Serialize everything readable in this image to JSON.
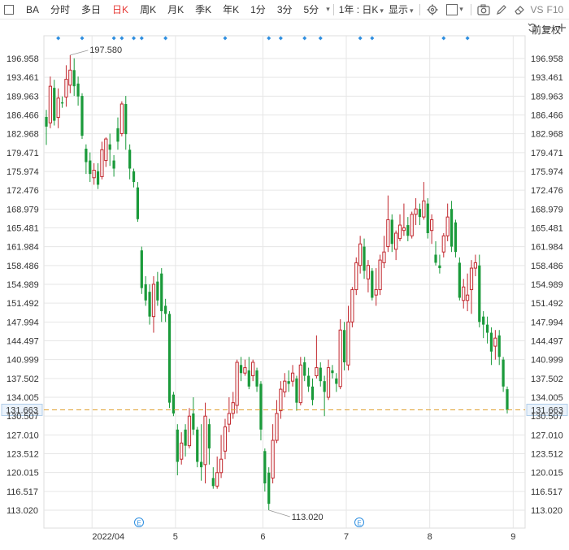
{
  "toolbar": {
    "symbol": "BA",
    "periods": [
      "分时",
      "多日",
      "日K",
      "周K",
      "月K",
      "季K",
      "年K",
      "1分",
      "3分",
      "5分"
    ],
    "active_period": "日K",
    "range_select": "1年 : 日K",
    "display_select": "显示",
    "vs_label": "VS",
    "f10_label": "F10"
  },
  "adjust_label": "前复权",
  "colors": {
    "up": "#c1272d",
    "down": "#1a9a3a",
    "marker": "#2d8ee0",
    "grid": "#e6e6e6"
  },
  "annotations": {
    "high": "197.580",
    "low": "113.020"
  },
  "current_price": "131.663",
  "x_labels": [
    "2022/04",
    "5",
    "6",
    "7",
    "8",
    "9"
  ],
  "chart_data": {
    "type": "candlestick",
    "y_ticks": [
      196.958,
      193.461,
      189.963,
      186.466,
      182.968,
      179.471,
      175.974,
      172.476,
      168.979,
      165.481,
      161.984,
      158.486,
      154.989,
      151.492,
      147.994,
      144.497,
      140.999,
      137.502,
      134.005,
      130.507,
      127.01,
      123.512,
      120.015,
      116.517,
      113.02
    ],
    "ylim": [
      110.5,
      199.5
    ],
    "current_price": 131.663,
    "high": 197.58,
    "low": 113.02,
    "x_labels": [
      "2022/04",
      "5",
      "6",
      "7",
      "8",
      "9"
    ],
    "candles": [
      {
        "o": 186.1,
        "c": 184.3,
        "h": 187.4,
        "l": 180.9
      },
      {
        "o": 185.0,
        "c": 191.8,
        "h": 193.6,
        "l": 184.0
      },
      {
        "o": 191.5,
        "c": 185.4,
        "h": 193.0,
        "l": 184.5
      },
      {
        "o": 186.0,
        "c": 189.6,
        "h": 191.4,
        "l": 184.0
      },
      {
        "o": 188.8,
        "c": 188.6,
        "h": 189.9,
        "l": 187.8
      },
      {
        "o": 189.8,
        "c": 193.1,
        "h": 195.7,
        "l": 188.0
      },
      {
        "o": 192.0,
        "c": 194.8,
        "h": 197.58,
        "l": 190.5
      },
      {
        "o": 194.8,
        "c": 191.8,
        "h": 197.0,
        "l": 190.0
      },
      {
        "o": 192.3,
        "c": 189.9,
        "h": 193.6,
        "l": 188.2
      },
      {
        "o": 190.0,
        "c": 182.6,
        "h": 190.5,
        "l": 182.0
      },
      {
        "o": 180.2,
        "c": 177.7,
        "h": 181.0,
        "l": 175.5
      },
      {
        "o": 178.0,
        "c": 175.5,
        "h": 179.5,
        "l": 174.0
      },
      {
        "o": 174.8,
        "c": 176.2,
        "h": 177.5,
        "l": 173.5
      },
      {
        "o": 176.0,
        "c": 173.5,
        "h": 177.5,
        "l": 172.7
      },
      {
        "o": 175.0,
        "c": 180.0,
        "h": 181.5,
        "l": 174.5
      },
      {
        "o": 178.0,
        "c": 182.0,
        "h": 182.3,
        "l": 176.8
      },
      {
        "o": 181.0,
        "c": 180.0,
        "h": 183.0,
        "l": 177.0
      },
      {
        "o": 178.0,
        "c": 176.5,
        "h": 179.0,
        "l": 175.0
      },
      {
        "o": 184.0,
        "c": 181.5,
        "h": 186.0,
        "l": 180.0
      },
      {
        "o": 183.0,
        "c": 188.5,
        "h": 189.0,
        "l": 182.5
      },
      {
        "o": 188.5,
        "c": 182.9,
        "h": 190.0,
        "l": 180.0
      },
      {
        "o": 180.0,
        "c": 176.5,
        "h": 181.0,
        "l": 174.5
      },
      {
        "o": 176.0,
        "c": 174.0,
        "h": 176.5,
        "l": 173.0
      },
      {
        "o": 173.0,
        "c": 167.1,
        "h": 174.0,
        "l": 166.6
      },
      {
        "o": 161.3,
        "c": 154.3,
        "h": 162.0,
        "l": 153.2
      },
      {
        "o": 155.0,
        "c": 152.0,
        "h": 156.5,
        "l": 151.0
      },
      {
        "o": 153.6,
        "c": 149.0,
        "h": 155.0,
        "l": 147.5
      },
      {
        "o": 149.0,
        "c": 155.0,
        "h": 156.5,
        "l": 146.0
      },
      {
        "o": 155.5,
        "c": 152.0,
        "h": 157.3,
        "l": 151.0
      },
      {
        "o": 157.0,
        "c": 150.0,
        "h": 158.0,
        "l": 148.0
      },
      {
        "o": 151.0,
        "c": 149.5,
        "h": 152.3,
        "l": 148.0
      },
      {
        "o": 149.5,
        "c": 133.0,
        "h": 150.0,
        "l": 132.0
      },
      {
        "o": 134.5,
        "c": 131.0,
        "h": 135.0,
        "l": 130.5
      },
      {
        "o": 128.0,
        "c": 122.0,
        "h": 129.0,
        "l": 119.5
      },
      {
        "o": 122.5,
        "c": 125.5,
        "h": 127.5,
        "l": 121.5
      },
      {
        "o": 128.0,
        "c": 125.0,
        "h": 129.0,
        "l": 123.0
      },
      {
        "o": 125.0,
        "c": 130.5,
        "h": 132.0,
        "l": 124.5
      },
      {
        "o": 131.0,
        "c": 128.0,
        "h": 134.0,
        "l": 127.0
      },
      {
        "o": 128.0,
        "c": 122.0,
        "h": 128.5,
        "l": 121.0
      },
      {
        "o": 122.0,
        "c": 121.0,
        "h": 129.0,
        "l": 118.5
      },
      {
        "o": 121.5,
        "c": 130.5,
        "h": 133.0,
        "l": 118.0
      },
      {
        "o": 129.0,
        "c": 124.5,
        "h": 130.0,
        "l": 121.5
      },
      {
        "o": 119.0,
        "c": 117.5,
        "h": 121.0,
        "l": 117.0
      },
      {
        "o": 117.5,
        "c": 120.0,
        "h": 123.0,
        "l": 117.0
      },
      {
        "o": 120.0,
        "c": 122.5,
        "h": 127.0,
        "l": 119.0
      },
      {
        "o": 124.0,
        "c": 128.5,
        "h": 130.0,
        "l": 122.5
      },
      {
        "o": 129.0,
        "c": 131.0,
        "h": 134.0,
        "l": 127.5
      },
      {
        "o": 131.0,
        "c": 133.0,
        "h": 135.0,
        "l": 130.0
      },
      {
        "o": 132.5,
        "c": 140.5,
        "h": 141.0,
        "l": 131.0
      },
      {
        "o": 140.0,
        "c": 138.5,
        "h": 141.5,
        "l": 137.0
      },
      {
        "o": 138.5,
        "c": 139.5,
        "h": 141.0,
        "l": 138.0
      },
      {
        "o": 139.0,
        "c": 136.0,
        "h": 141.5,
        "l": 135.5
      },
      {
        "o": 138.0,
        "c": 140.5,
        "h": 141.0,
        "l": 137.0
      },
      {
        "o": 139.0,
        "c": 136.0,
        "h": 139.5,
        "l": 135.0
      },
      {
        "o": 136.5,
        "c": 128.0,
        "h": 137.0,
        "l": 126.0
      },
      {
        "o": 124.0,
        "c": 118.0,
        "h": 124.5,
        "l": 116.5
      },
      {
        "o": 120.0,
        "c": 114.2,
        "h": 121.0,
        "l": 113.02
      },
      {
        "o": 119.0,
        "c": 126.0,
        "h": 129.0,
        "l": 118.0
      },
      {
        "o": 126.0,
        "c": 131.0,
        "h": 133.5,
        "l": 125.5
      },
      {
        "o": 131.5,
        "c": 135.5,
        "h": 137.0,
        "l": 130.0
      },
      {
        "o": 135.0,
        "c": 137.0,
        "h": 138.5,
        "l": 134.0
      },
      {
        "o": 137.0,
        "c": 136.5,
        "h": 139.0,
        "l": 135.0
      },
      {
        "o": 137.0,
        "c": 138.5,
        "h": 140.0,
        "l": 136.0
      },
      {
        "o": 137.5,
        "c": 133.0,
        "h": 138.0,
        "l": 131.5
      },
      {
        "o": 133.0,
        "c": 140.0,
        "h": 141.5,
        "l": 132.5
      },
      {
        "o": 140.5,
        "c": 138.0,
        "h": 141.5,
        "l": 137.0
      },
      {
        "o": 138.0,
        "c": 136.0,
        "h": 139.5,
        "l": 135.0
      },
      {
        "o": 136.0,
        "c": 133.5,
        "h": 137.5,
        "l": 132.5
      },
      {
        "o": 138.0,
        "c": 139.5,
        "h": 145.5,
        "l": 137.5
      },
      {
        "o": 139.5,
        "c": 137.0,
        "h": 140.5,
        "l": 136.0
      },
      {
        "o": 137.0,
        "c": 135.0,
        "h": 138.0,
        "l": 130.5
      },
      {
        "o": 134.0,
        "c": 139.5,
        "h": 141.0,
        "l": 133.5
      },
      {
        "o": 139.0,
        "c": 138.5,
        "h": 140.0,
        "l": 137.5
      },
      {
        "o": 137.5,
        "c": 136.5,
        "h": 138.5,
        "l": 135.0
      },
      {
        "o": 136.0,
        "c": 146.5,
        "h": 148.5,
        "l": 135.5
      },
      {
        "o": 146.5,
        "c": 140.5,
        "h": 148.0,
        "l": 139.0
      },
      {
        "o": 140.0,
        "c": 148.0,
        "h": 151.0,
        "l": 139.0
      },
      {
        "o": 148.0,
        "c": 154.0,
        "h": 154.5,
        "l": 147.0
      },
      {
        "o": 154.0,
        "c": 159.0,
        "h": 160.0,
        "l": 153.0
      },
      {
        "o": 158.5,
        "c": 162.5,
        "h": 164.0,
        "l": 157.0
      },
      {
        "o": 162.0,
        "c": 157.5,
        "h": 163.5,
        "l": 156.0
      },
      {
        "o": 156.0,
        "c": 158.5,
        "h": 159.5,
        "l": 153.5
      },
      {
        "o": 157.5,
        "c": 152.5,
        "h": 158.0,
        "l": 152.0
      },
      {
        "o": 153.0,
        "c": 154.0,
        "h": 158.0,
        "l": 151.0
      },
      {
        "o": 154.0,
        "c": 159.5,
        "h": 160.5,
        "l": 153.0
      },
      {
        "o": 159.0,
        "c": 161.0,
        "h": 164.0,
        "l": 158.0
      },
      {
        "o": 162.0,
        "c": 167.0,
        "h": 171.5,
        "l": 161.0
      },
      {
        "o": 167.0,
        "c": 162.5,
        "h": 168.0,
        "l": 161.0
      },
      {
        "o": 161.5,
        "c": 164.5,
        "h": 165.0,
        "l": 159.5
      },
      {
        "o": 163.5,
        "c": 166.0,
        "h": 168.0,
        "l": 163.0
      },
      {
        "o": 165.0,
        "c": 165.5,
        "h": 170.0,
        "l": 164.0
      },
      {
        "o": 166.0,
        "c": 164.0,
        "h": 167.5,
        "l": 163.0
      },
      {
        "o": 164.0,
        "c": 168.0,
        "h": 168.5,
        "l": 163.5
      },
      {
        "o": 168.0,
        "c": 169.0,
        "h": 171.0,
        "l": 166.0
      },
      {
        "o": 169.0,
        "c": 167.5,
        "h": 170.0,
        "l": 166.0
      },
      {
        "o": 167.5,
        "c": 170.5,
        "h": 174.0,
        "l": 167.0
      },
      {
        "o": 170.0,
        "c": 164.5,
        "h": 171.0,
        "l": 163.5
      },
      {
        "o": 165.0,
        "c": 167.0,
        "h": 168.0,
        "l": 162.5
      },
      {
        "o": 160.5,
        "c": 159.0,
        "h": 163.0,
        "l": 158.5
      },
      {
        "o": 158.5,
        "c": 158.0,
        "h": 160.5,
        "l": 157.0
      },
      {
        "o": 161.0,
        "c": 164.0,
        "h": 164.5,
        "l": 160.0
      },
      {
        "o": 164.0,
        "c": 167.5,
        "h": 170.0,
        "l": 163.0
      },
      {
        "o": 169.0,
        "c": 162.0,
        "h": 170.5,
        "l": 161.0
      },
      {
        "o": 166.5,
        "c": 161.0,
        "h": 167.0,
        "l": 160.0
      },
      {
        "o": 159.0,
        "c": 152.5,
        "h": 160.0,
        "l": 152.0
      },
      {
        "o": 152.0,
        "c": 154.5,
        "h": 156.0,
        "l": 150.5
      },
      {
        "o": 152.0,
        "c": 153.0,
        "h": 157.0,
        "l": 150.0
      },
      {
        "o": 154.0,
        "c": 158.0,
        "h": 159.5,
        "l": 149.5
      },
      {
        "o": 158.0,
        "c": 159.0,
        "h": 160.5,
        "l": 156.5
      },
      {
        "o": 158.5,
        "c": 148.0,
        "h": 160.5,
        "l": 147.0
      },
      {
        "o": 149.0,
        "c": 147.5,
        "h": 150.0,
        "l": 145.0
      },
      {
        "o": 147.5,
        "c": 146.0,
        "h": 149.0,
        "l": 144.0
      },
      {
        "o": 146.0,
        "c": 142.5,
        "h": 147.0,
        "l": 140.0
      },
      {
        "o": 143.5,
        "c": 145.0,
        "h": 146.5,
        "l": 141.0
      },
      {
        "o": 145.5,
        "c": 141.5,
        "h": 146.5,
        "l": 140.0
      },
      {
        "o": 141.0,
        "c": 136.0,
        "h": 141.5,
        "l": 135.0
      },
      {
        "o": 135.5,
        "c": 131.663,
        "h": 136.0,
        "l": 131.0
      }
    ],
    "marker_days": [
      3,
      9,
      17,
      19,
      22,
      24,
      30,
      45,
      56,
      59,
      65,
      69,
      79,
      82,
      100,
      106
    ]
  }
}
